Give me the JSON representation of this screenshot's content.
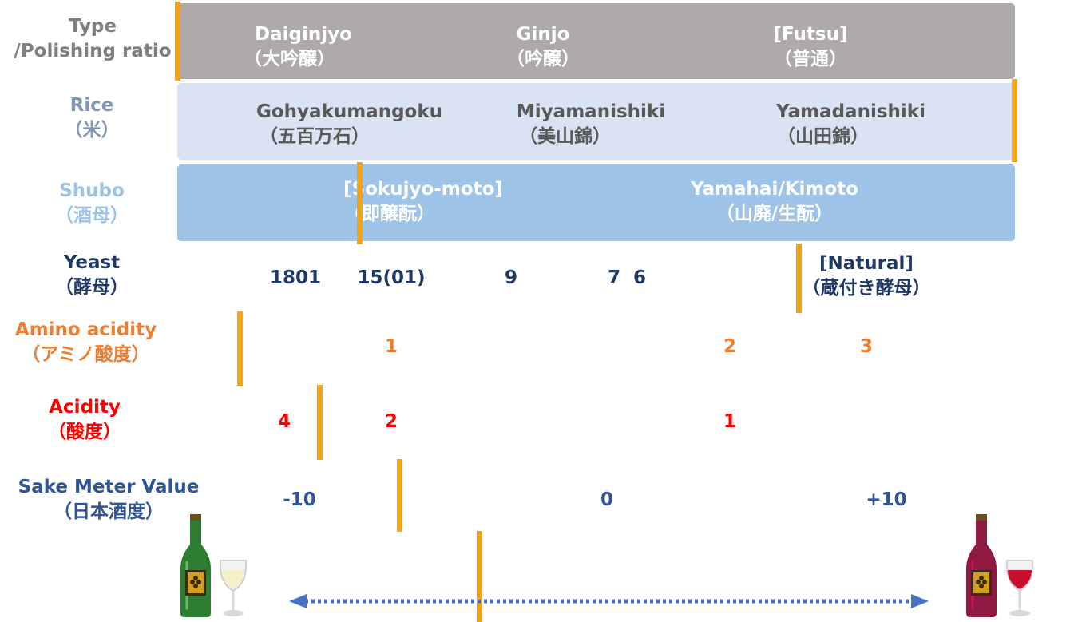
{
  "rows": {
    "type": {
      "label": [
        "Type",
        "/Polishing ratio"
      ],
      "items": [
        [
          "Daiginjyo",
          "（大吟醸）"
        ],
        [
          "Ginjo",
          "（吟醸）"
        ],
        [
          "[Futsu]",
          "（普通）"
        ]
      ]
    },
    "rice": {
      "label": [
        "Rice",
        "（米）"
      ],
      "items": [
        [
          "Gohyakumangoku",
          "（五百万石）"
        ],
        [
          "Miyamanishiki",
          "（美山錦）"
        ],
        [
          "Yamadanishiki",
          "（山田錦）"
        ]
      ]
    },
    "shubo": {
      "label": [
        "Shubo",
        "（酒母）"
      ],
      "items": [
        [
          "[Sokujyo-moto]",
          "（即醸酛）"
        ],
        [
          "Yamahai/Kimoto",
          "（山廃/生酛）"
        ]
      ]
    },
    "yeast": {
      "label": [
        "Yeast",
        "（酵母）"
      ],
      "items": [
        "1801",
        "15(01)",
        "9",
        "7  6"
      ],
      "natural": [
        "[Natural]",
        "（蔵付き酵母）"
      ]
    },
    "amino": {
      "label": [
        "Amino acidity",
        "（アミノ酸度）"
      ],
      "items": [
        "1",
        "2",
        "3"
      ]
    },
    "acidity": {
      "label": [
        "Acidity",
        "（酸度）"
      ],
      "items": [
        "4",
        "2",
        "1"
      ]
    },
    "smv": {
      "label": [
        "Sake Meter Value",
        "（日本酒度）"
      ],
      "items": [
        "-10",
        "0",
        "+10"
      ]
    }
  },
  "bottles": {
    "left_label": "WINE",
    "right_label": "WINE"
  },
  "colors": {
    "type_band": "#aeaaa9",
    "rice_band": "#dae3f3",
    "shubo_band": "#9dc3e6",
    "marker": "#f5a514",
    "type_text": "#7f7f7f",
    "shubo_label": "#9dc3e6",
    "yeast_text": "#203864",
    "amino_text": "#ed7d31",
    "acidity_text": "#ff0000",
    "smv_text": "#2f5597",
    "arrow": "#4472c4"
  }
}
